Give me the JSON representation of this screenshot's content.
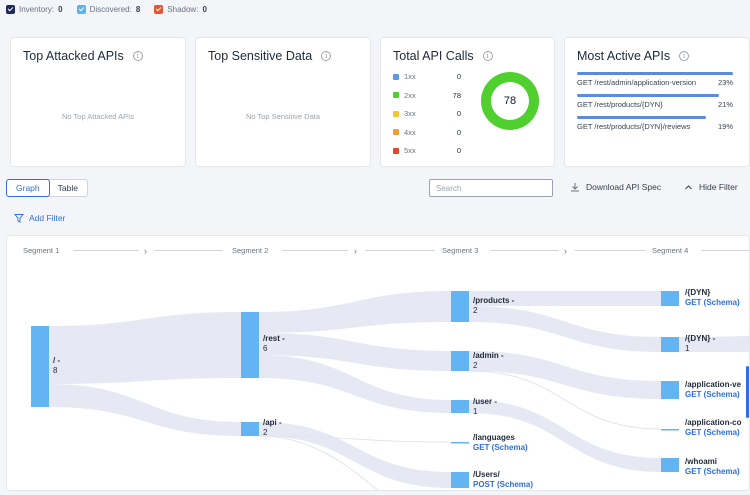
{
  "legend": [
    {
      "label": "Inventory:",
      "count": "0",
      "color": "#1e2a5a"
    },
    {
      "label": "Discovered:",
      "count": "8",
      "color": "#5ab4ea"
    },
    {
      "label": "Shadow:",
      "count": "0",
      "color": "#e4572e"
    }
  ],
  "cards": {
    "attacked": {
      "title": "Top Attacked APIs",
      "empty": "No Top Attacked APIs"
    },
    "sensitive": {
      "title": "Top Sensitive Data",
      "empty": "No Top Sensitive Data"
    },
    "calls": {
      "title": "Total API Calls",
      "total": "78",
      "rows": [
        {
          "label": "1xx",
          "count": "0",
          "color": "#5b9be6"
        },
        {
          "label": "2xx",
          "count": "78",
          "color": "#4fd02f"
        },
        {
          "label": "3xx",
          "count": "0",
          "color": "#f7c531"
        },
        {
          "label": "4xx",
          "count": "0",
          "color": "#f39c34"
        },
        {
          "label": "5xx",
          "count": "0",
          "color": "#e4472e"
        }
      ]
    },
    "active": {
      "title": "Most Active APIs",
      "rows": [
        {
          "path": "GET /rest/admin/application-version",
          "pct": "23%",
          "fraction": 0.23
        },
        {
          "path": "GET /rest/products/{DYN}",
          "pct": "21%",
          "fraction": 0.21
        },
        {
          "path": "GET /rest/products/{DYN}/reviews",
          "pct": "19%",
          "fraction": 0.19
        }
      ]
    }
  },
  "toolbar": {
    "tab_graph": "Graph",
    "tab_table": "Table",
    "active_tab": "Graph",
    "search_placeholder": "Search",
    "download": "Download API Spec",
    "hide_filter": "Hide Filter",
    "add_filter": "Add Filter"
  },
  "segments": [
    "Segment 1",
    "Segment 2",
    "Segment 3",
    "Segment 4"
  ],
  "nodes": {
    "root": {
      "label": "/ -",
      "count": "8"
    },
    "rest": {
      "label": "/rest -",
      "count": "6"
    },
    "api": {
      "label": "/api -",
      "count": "2"
    },
    "products": {
      "label": "/products -",
      "count": "2"
    },
    "admin": {
      "label": "/admin -",
      "count": "2"
    },
    "user": {
      "label": "/user -",
      "count": "1"
    },
    "languages": {
      "label": "/languages",
      "sub": "GET (Schema)"
    },
    "users": {
      "label": "/Users/",
      "sub": "POST (Schema)"
    },
    "dyn_get": {
      "label": "/{DYN}",
      "sub": "GET (Schema)"
    },
    "dyn_count": {
      "label": "/{DYN} -",
      "count": "1"
    },
    "appver": {
      "label": "/application-ve",
      "sub": "GET (Schema)"
    },
    "appcon": {
      "label": "/application-co",
      "sub": "GET (Schema)"
    },
    "whoami": {
      "label": "/whoami",
      "sub": "GET (Schema)"
    }
  },
  "colors": {
    "node": "#62b5f2",
    "link": "#e6e9f4",
    "accent": "#2f6fd6"
  }
}
